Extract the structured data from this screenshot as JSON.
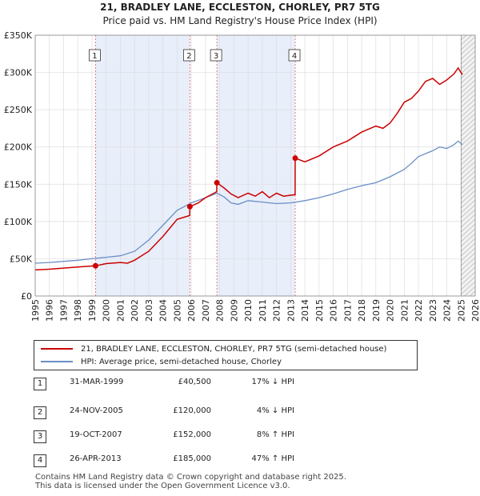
{
  "title_line1": "21, BRADLEY LANE, ECCLESTON, CHORLEY, PR7 5TG",
  "title_line2": "Price paid vs. HM Land Registry's House Price Index (HPI)",
  "colors": {
    "property": "#cc0000",
    "hpi": "#6a8fc6",
    "shade": "#e8eefa",
    "grid": "#dddddd",
    "marker_line": "#e06060"
  },
  "legend": {
    "property_label": "21, BRADLEY LANE, ECCLESTON, CHORLEY, PR7 5TG (semi-detached house)",
    "hpi_label": "HPI: Average price, semi-detached house, Chorley"
  },
  "sales": [
    {
      "num": "1",
      "date": "31-MAR-1999",
      "price": "£40,500",
      "hpi": "17% ↓ HPI"
    },
    {
      "num": "2",
      "date": "24-NOV-2005",
      "price": "£120,000",
      "hpi": "4% ↓ HPI"
    },
    {
      "num": "3",
      "date": "19-OCT-2007",
      "price": "£152,000",
      "hpi": "8% ↑ HPI"
    },
    {
      "num": "4",
      "date": "26-APR-2013",
      "price": "£185,000",
      "hpi": "47% ↑ HPI"
    }
  ],
  "footer_line1": "Contains HM Land Registry data © Crown copyright and database right 2025.",
  "footer_line2": "This data is licensed under the Open Government Licence v3.0.",
  "chart_data": {
    "type": "line",
    "title": "21, BRADLEY LANE, ECCLESTON, CHORLEY, PR7 5TG",
    "subtitle": "Price paid vs. HM Land Registry's House Price Index (HPI)",
    "xlim": [
      1995,
      2026
    ],
    "ylim": [
      0,
      350000
    ],
    "x_ticks": [
      1995,
      1996,
      1997,
      1998,
      1999,
      2000,
      2001,
      2002,
      2003,
      2004,
      2005,
      2006,
      2007,
      2008,
      2009,
      2010,
      2011,
      2012,
      2013,
      2014,
      2015,
      2016,
      2017,
      2018,
      2019,
      2020,
      2021,
      2022,
      2023,
      2024,
      2025,
      2026
    ],
    "y_ticks": [
      0,
      50000,
      100000,
      150000,
      200000,
      250000,
      300000,
      350000
    ],
    "y_tick_labels": [
      "£0",
      "£50K",
      "£100K",
      "£150K",
      "£200K",
      "£250K",
      "£300K",
      "£350K"
    ],
    "grid": true,
    "shaded_ranges": [
      [
        1999.25,
        2005.9
      ],
      [
        2007.8,
        2013.3
      ]
    ],
    "future_hatch_start": 2025.0,
    "sale_markers": [
      {
        "label": "1",
        "x": 1999.25,
        "y": 40500
      },
      {
        "label": "2",
        "x": 2005.9,
        "y": 120000
      },
      {
        "label": "3",
        "x": 2007.8,
        "y": 152000
      },
      {
        "label": "4",
        "x": 2013.32,
        "y": 185000
      }
    ],
    "series": [
      {
        "name": "21, BRADLEY LANE, ECCLESTON, CHORLEY, PR7 5TG (semi-detached house)",
        "x": [
          1995,
          1996,
          1997,
          1998,
          1999.24,
          1999.25,
          2000,
          2001,
          2001.5,
          2002,
          2003,
          2004,
          2005,
          2005.89,
          2005.9,
          2006.5,
          2007,
          2007.79,
          2007.8,
          2008.3,
          2008.8,
          2009.3,
          2010,
          2010.5,
          2011,
          2011.5,
          2012,
          2012.5,
          2013.31,
          2013.32,
          2014,
          2015,
          2016,
          2017,
          2018,
          2019,
          2019.5,
          2020,
          2020.5,
          2021,
          2021.5,
          2022,
          2022.5,
          2023,
          2023.5,
          2024,
          2024.5,
          2024.8,
          2025.1
        ],
        "y": [
          35000,
          36000,
          37500,
          39000,
          40500,
          40500,
          43500,
          45000,
          44000,
          48000,
          60000,
          80000,
          103000,
          108000,
          120000,
          125000,
          132000,
          140000,
          152000,
          145000,
          137000,
          132000,
          138000,
          134000,
          140000,
          132000,
          138000,
          134000,
          136000,
          185000,
          180000,
          188000,
          200000,
          208000,
          220000,
          228000,
          225000,
          232000,
          245000,
          260000,
          265000,
          275000,
          288000,
          292000,
          284000,
          290000,
          298000,
          306000,
          297000
        ]
      },
      {
        "name": "HPI: Average price, semi-detached house, Chorley",
        "x": [
          1995,
          1996,
          1997,
          1998,
          1999,
          2000,
          2001,
          2002,
          2003,
          2004,
          2005,
          2006,
          2007,
          2007.8,
          2008.3,
          2008.8,
          2009.3,
          2010,
          2011,
          2012,
          2013,
          2014,
          2015,
          2016,
          2017,
          2018,
          2019,
          2020,
          2021,
          2021.5,
          2022,
          2023,
          2023.5,
          2024,
          2024.5,
          2024.8,
          2025.1
        ],
        "y": [
          44000,
          45000,
          46500,
          48000,
          50000,
          52000,
          54000,
          60000,
          75000,
          95000,
          115000,
          125000,
          132000,
          138000,
          133000,
          125000,
          123000,
          128000,
          126000,
          124000,
          125000,
          128000,
          132000,
          137000,
          143000,
          148000,
          152000,
          160000,
          170000,
          178000,
          187000,
          195000,
          200000,
          198000,
          203000,
          208000,
          203000
        ]
      }
    ]
  }
}
